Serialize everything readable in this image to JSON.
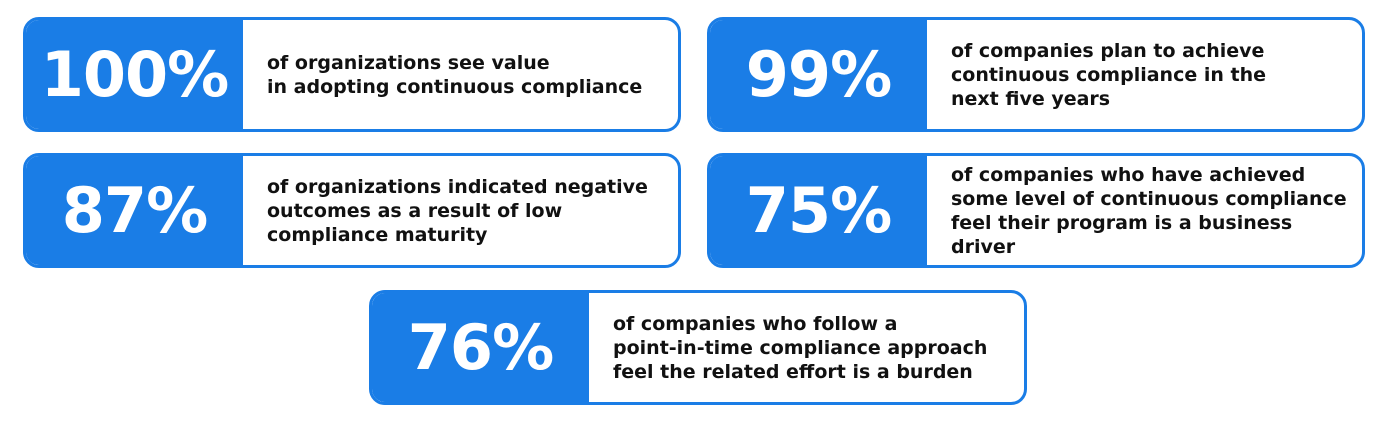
{
  "accent_color": "#1a7de6",
  "stats": [
    {
      "value": "100%",
      "lines": [
        "of organizations see value",
        "in adopting continuous compliance"
      ]
    },
    {
      "value": "99%",
      "lines": [
        "of companies plan to achieve",
        "continuous compliance in the",
        "next five years"
      ]
    },
    {
      "value": "87%",
      "lines": [
        "of organizations indicated negative",
        "outcomes as a result of low",
        "compliance maturity"
      ]
    },
    {
      "value": "75%",
      "lines": [
        "of companies who have achieved",
        "some level of continuous compliance",
        "feel their program is a business driver"
      ]
    },
    {
      "value": "76%",
      "lines": [
        "of companies who follow a",
        "point-in-time compliance approach",
        "feel the related effort is a burden"
      ]
    }
  ]
}
